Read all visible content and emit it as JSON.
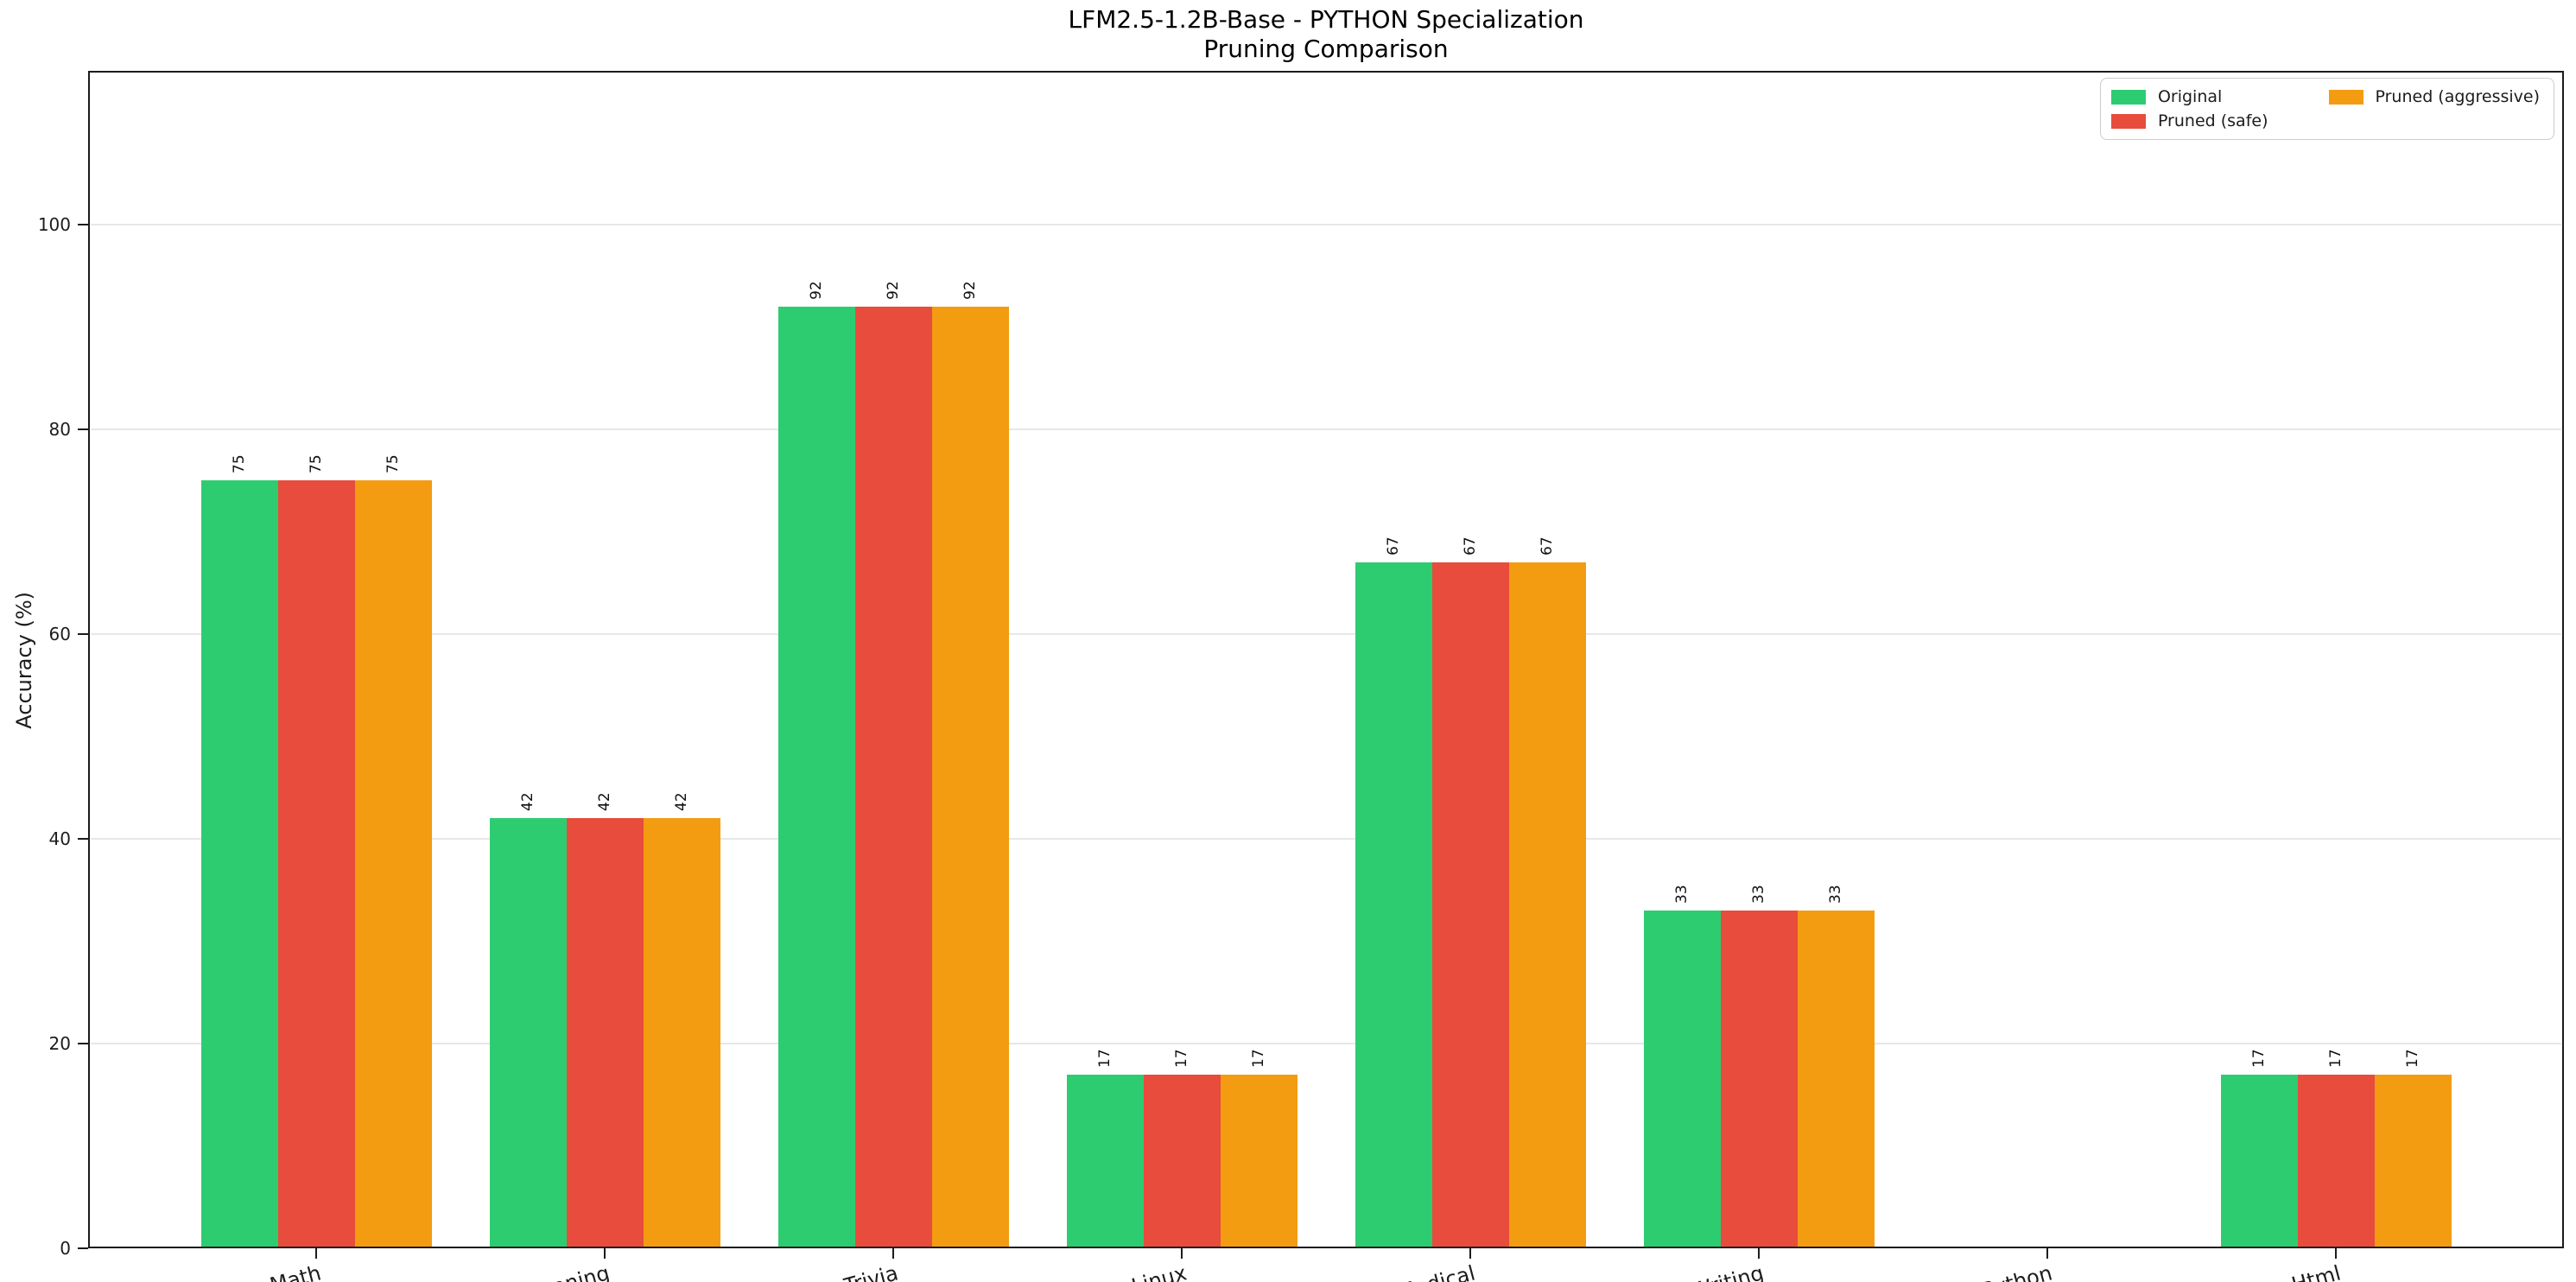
{
  "chart_data": {
    "type": "bar",
    "title_line1": "LFM2.5-1.2B-Base - PYTHON Specialization",
    "title_line2": "Pruning Comparison",
    "ylabel": "Accuracy (%)",
    "xlabel": "",
    "categories": [
      "Math",
      "Reasoning",
      "Trivia",
      "Linux",
      "Medical",
      "Writing",
      "Python",
      "Html"
    ],
    "series": [
      {
        "name": "Original",
        "color": "#2ecc71",
        "values": [
          75,
          42,
          92,
          17,
          67,
          33,
          0,
          17
        ]
      },
      {
        "name": "Pruned (safe)",
        "color": "#e74c3c",
        "values": [
          75,
          42,
          92,
          17,
          67,
          33,
          0,
          17
        ]
      },
      {
        "name": "Pruned (aggressive)",
        "color": "#f39c12",
        "values": [
          75,
          42,
          92,
          17,
          67,
          33,
          0,
          17
        ]
      }
    ],
    "bar_value_labels_shown_for_zero": false,
    "yticks": [
      0,
      20,
      40,
      60,
      80,
      100
    ],
    "ylim": [
      0,
      115
    ],
    "grid": "horizontal",
    "grid_color": "#e7e7e7",
    "legend_position": "upper-right",
    "legend_columns": 2,
    "bar_label_rotation_deg": 90,
    "xtick_rotation_deg": 15
  }
}
